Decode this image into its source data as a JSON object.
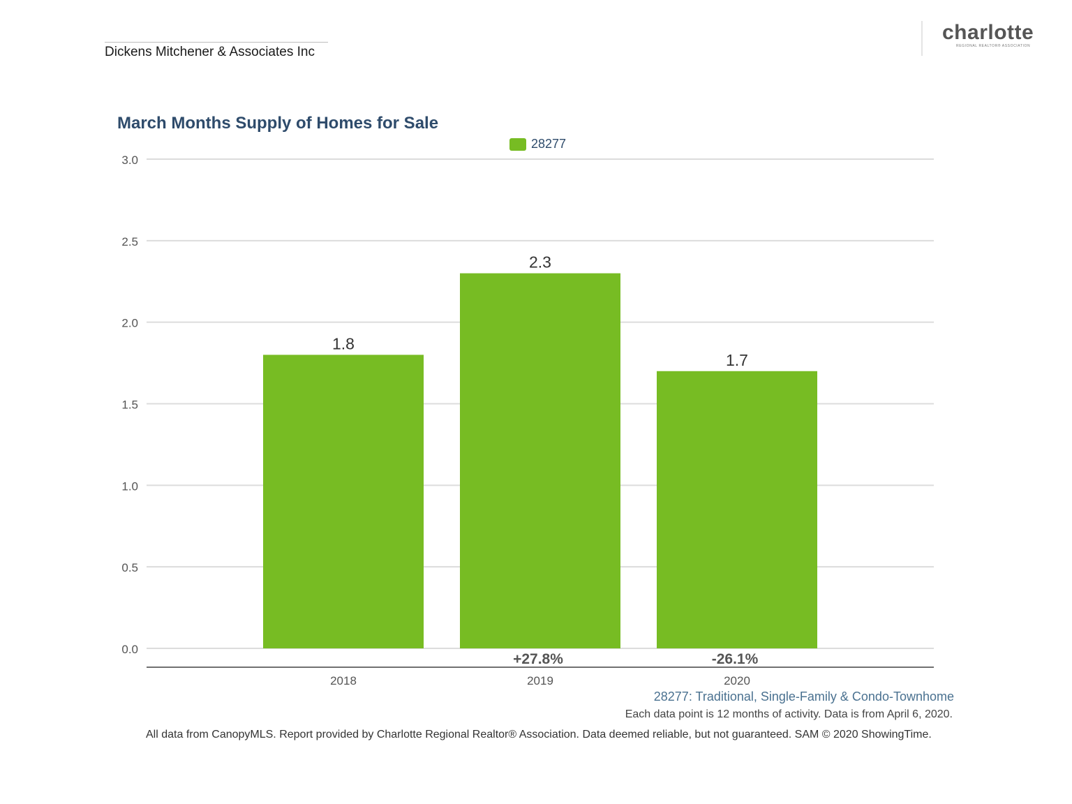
{
  "header": {
    "agent_name": "Dickens Mitchener & Associates Inc"
  },
  "logo": {
    "word": "charlotte",
    "tagline": "REGIONAL REALTOR® ASSOCIATION"
  },
  "colors": {
    "bar": "#77bc23",
    "title": "#2e4b6b",
    "grid": "#dcdcdc",
    "axis": "#707070"
  },
  "chart_data": {
    "type": "bar",
    "title": "March Months Supply of Homes for Sale",
    "legend": [
      "28277"
    ],
    "legend_position": "top-center",
    "categories": [
      "2018",
      "2019",
      "2020"
    ],
    "series": [
      {
        "name": "28277",
        "values": [
          1.8,
          2.3,
          1.7
        ]
      }
    ],
    "data_labels": [
      "1.8",
      "2.3",
      "1.7"
    ],
    "change_labels": [
      "",
      "+27.8%",
      "-26.1%"
    ],
    "y_ticks": [
      "3.0",
      "2.5",
      "2.0",
      "1.5",
      "1.0",
      "0.5",
      "0.0"
    ],
    "ylim": [
      0,
      3.0
    ],
    "grid": true,
    "xlabel": "",
    "ylabel": ""
  },
  "footnotes": {
    "area": "28277: Traditional, Single-Family & Condo-Townhome",
    "period": "Each data point is 12 months of activity. Data is from April 6, 2020."
  },
  "disclaimer": "All data from CanopyMLS. Report provided by Charlotte Regional Realtor® Association. Data deemed reliable, but not guaranteed. SAM © 2020 ShowingTime."
}
